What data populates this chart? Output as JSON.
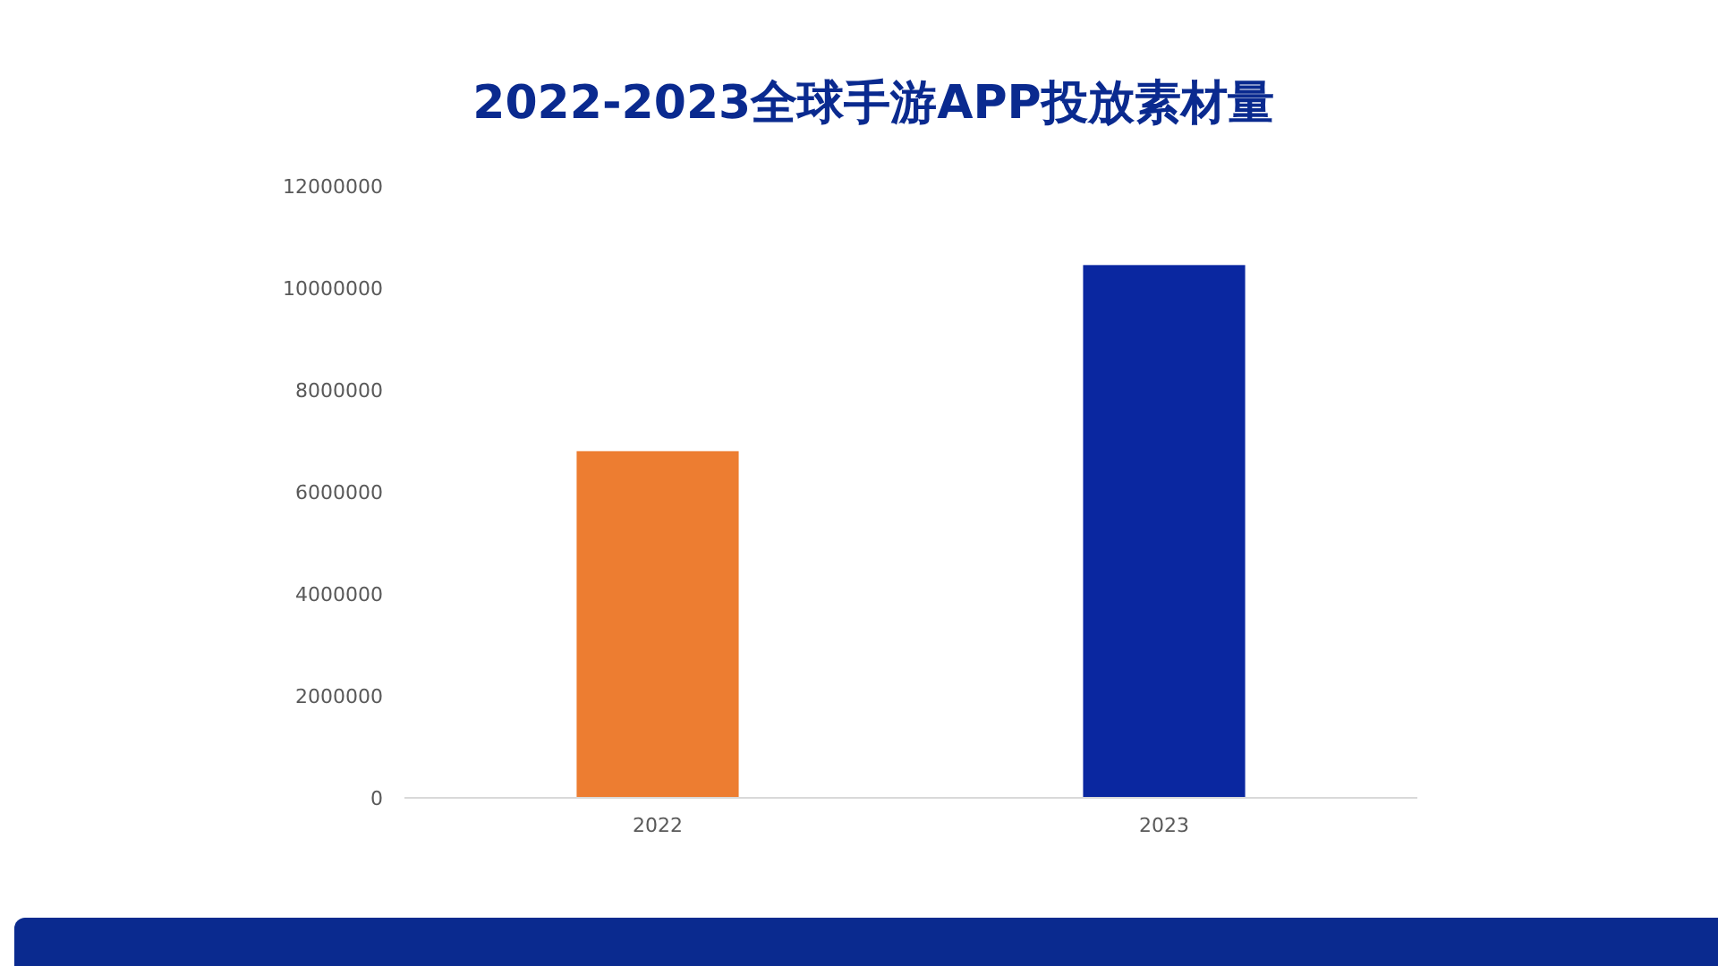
{
  "chart_data": {
    "type": "bar",
    "title": "2022-2023全球手游APP投放素材量",
    "categories": [
      "2022",
      "2023"
    ],
    "values": [
      6800000,
      10450000
    ],
    "colors": [
      "#ed7d31",
      "#0a27a0"
    ],
    "ylim": [
      0,
      12000000
    ],
    "yticks": [
      0,
      2000000,
      4000000,
      6000000,
      8000000,
      10000000,
      12000000
    ],
    "grid": false
  }
}
